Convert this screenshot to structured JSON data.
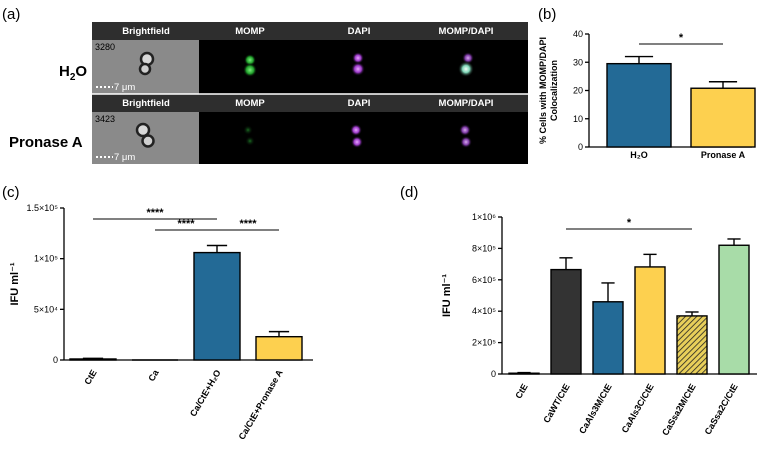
{
  "panel_labels": {
    "a": "(a)",
    "b": "(b)",
    "c": "(c)",
    "d": "(d)"
  },
  "micrograph": {
    "channel_headers": [
      "Brightfield",
      "MOMP",
      "DAPI",
      "MOMP/DAPI"
    ],
    "rows": [
      {
        "label_main": "H",
        "label_sub": "2",
        "label_tail": "O",
        "cell_id": "3280",
        "scale": "7 μm"
      },
      {
        "label_main": "Pronase A",
        "label_sub": "",
        "label_tail": "",
        "cell_id": "3423",
        "scale": "7 μm"
      }
    ],
    "colors": {
      "momp": "#2fc437",
      "dapi": "#b04ae0",
      "overlay": "#cfe8e8"
    }
  },
  "chart_data": [
    {
      "id": "b",
      "type": "bar",
      "categories": [
        "H₂O",
        "Pronase A"
      ],
      "values": [
        29.5,
        20.8
      ],
      "errors": [
        2.5,
        2.3
      ],
      "colors": [
        "#236a96",
        "#fdd04f"
      ],
      "ylabel_line1": "% Cells with MOMP/DAPI",
      "ylabel_line2": "Colocalization",
      "ylim": [
        0,
        40
      ],
      "yticks": [
        0,
        10,
        20,
        30,
        40
      ],
      "ytick_labels": [
        "0",
        "10",
        "20",
        "30",
        "40"
      ],
      "significance": [
        {
          "from": 0,
          "to": 1,
          "label": "*"
        }
      ]
    },
    {
      "id": "c",
      "type": "bar",
      "categories": [
        "CtE",
        "Ca",
        "Ca/CtE+H₂O",
        "Ca/CtE+Pronase A"
      ],
      "values": [
        1000,
        0,
        106000,
        23000
      ],
      "errors": [
        600,
        0,
        7000,
        5000
      ],
      "colors": [
        "#236a96",
        "#236a96",
        "#236a96",
        "#fdd04f"
      ],
      "ylabel": "IFU ml⁻¹",
      "ylim": [
        0,
        150000
      ],
      "yticks": [
        0,
        50000,
        100000,
        150000
      ],
      "ytick_labels": [
        "0",
        "5×10⁴",
        "1×10⁵",
        "1.5×10⁵"
      ],
      "significance": [
        {
          "from": 0,
          "to": 2,
          "label": "****"
        },
        {
          "from": 1,
          "to": 2,
          "label": "****"
        },
        {
          "from": 2,
          "to": 3,
          "label": "****"
        }
      ]
    },
    {
      "id": "d",
      "type": "bar",
      "categories": [
        "CtE",
        "CaWT/CtE",
        "CaAls3M/CtE",
        "CaAls3C/CtE",
        "CaSsa2M/CtE",
        "CaSsa2C/CtE"
      ],
      "values": [
        5000,
        665000,
        460000,
        682000,
        370000,
        820000
      ],
      "errors": [
        4000,
        75000,
        120000,
        80000,
        25000,
        40000
      ],
      "colors": [
        "#333333",
        "#333333",
        "#236a96",
        "#fdd04f",
        "#c8ad38",
        "#a8dca8"
      ],
      "hatched": [
        false,
        false,
        false,
        false,
        true,
        false
      ],
      "ylabel": "IFU ml⁻¹",
      "ylim": [
        0,
        1000000
      ],
      "yticks": [
        0,
        200000,
        400000,
        600000,
        800000,
        1000000
      ],
      "ytick_labels": [
        "0",
        "2×10⁵",
        "4×10⁵",
        "6×10⁵",
        "8×10⁵",
        "1×10⁶"
      ],
      "significance": [
        {
          "from": 1,
          "to": 4,
          "label": "*"
        }
      ]
    }
  ]
}
